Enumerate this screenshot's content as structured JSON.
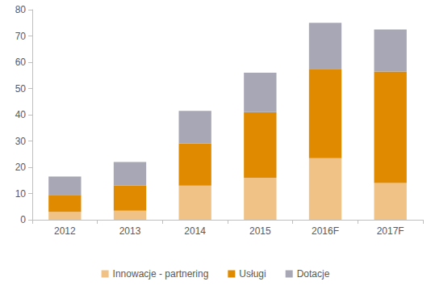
{
  "chart_data": {
    "type": "bar",
    "categories": [
      "2012",
      "2013",
      "2014",
      "2015",
      "2016F",
      "2017F"
    ],
    "series": [
      {
        "name": "Innowacje - partnering",
        "color": "#f0c285",
        "values": [
          3,
          3.5,
          13,
          16,
          23.5,
          14
        ]
      },
      {
        "name": "Usługi",
        "color": "#e08a00",
        "values": [
          6.5,
          9.5,
          16,
          25,
          34,
          42.5
        ]
      },
      {
        "name": "Dotacje",
        "color": "#a8a7b5",
        "values": [
          7,
          9,
          12.5,
          15,
          17.5,
          16
        ]
      }
    ],
    "stacked": true,
    "ylim": [
      0,
      80
    ],
    "yticks": [
      0,
      10,
      20,
      30,
      40,
      50,
      60,
      70,
      80
    ],
    "grid": false,
    "legend": "bottom"
  }
}
